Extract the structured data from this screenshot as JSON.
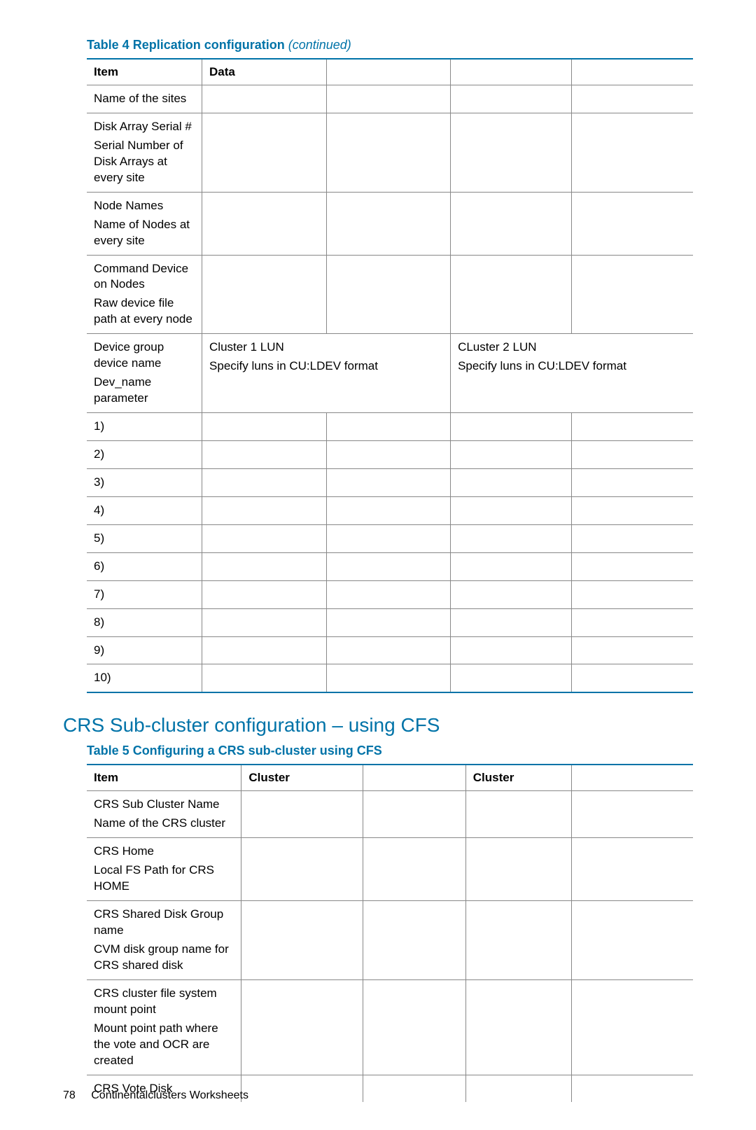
{
  "colors": {
    "accent": "#0073a8",
    "border": "#888888",
    "text": "#000000",
    "background": "#ffffff"
  },
  "table4": {
    "caption_prefix": "Table 4 Replication configuration ",
    "caption_suffix": "(continued)",
    "headers": {
      "h1": "Item",
      "h2": "Data"
    },
    "rows": {
      "r0": "Name of the sites",
      "r1a": "Disk Array Serial #",
      "r1b": "Serial Number of Disk Arrays at every site",
      "r2a": "Node Names",
      "r2b": "Name of Nodes at every site",
      "r3a": "Command Device on Nodes",
      "r3b": "Raw device file path at every node",
      "r4a": "Device group device name",
      "r4b": "Dev_name parameter",
      "r4_c1a": "Cluster 1 LUN",
      "r4_c1b": "Specify luns in CU:LDEV format",
      "r4_c2a": "CLuster 2 LUN",
      "r4_c2b": "Specify luns in CU:LDEV format",
      "n1": "1)",
      "n2": "2)",
      "n3": "3)",
      "n4": "4)",
      "n5": "5)",
      "n6": "6)",
      "n7": "7)",
      "n8": "8)",
      "n9": "9)",
      "n10": "10)"
    }
  },
  "section_heading": "CRS Sub-cluster configuration – using CFS",
  "table5": {
    "caption": "Table 5 Configuring a CRS sub-cluster using CFS",
    "headers": {
      "h1": "Item",
      "h2": "Cluster",
      "h3": "Cluster"
    },
    "rows": {
      "r0a": "CRS Sub Cluster Name",
      "r0b": "Name of the CRS cluster",
      "r1a": "CRS Home",
      "r1b": "Local FS Path for CRS HOME",
      "r2a": "CRS Shared Disk Group name",
      "r2b": "CVM disk group name for CRS shared disk",
      "r3a": "CRS cluster file system mount point",
      "r3b": "Mount point path where the vote and OCR are created",
      "r4": "CRS Vote Disk"
    }
  },
  "footer": {
    "page_number": "78",
    "chapter": "Continentalclusters Worksheets"
  }
}
